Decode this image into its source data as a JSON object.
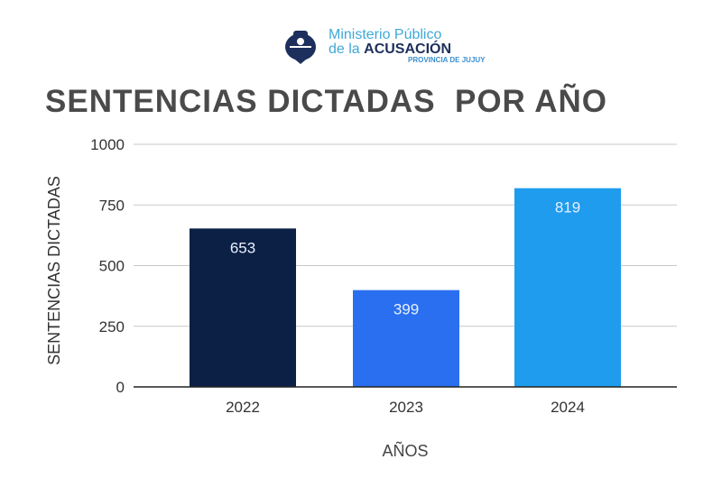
{
  "logo": {
    "line1": "Ministerio Público",
    "line2a": "de la ",
    "line2b": "ACUSACIÓN",
    "line3": "PROVINCIA DE JUJUY"
  },
  "chart_data": {
    "type": "bar",
    "title": "SENTENCIAS DICTADAS  POR AÑO",
    "xlabel": "AÑOS",
    "ylabel": "SENTENCIAS DICTADAS",
    "categories": [
      "2022",
      "2023",
      "2024"
    ],
    "values": [
      653,
      399,
      819
    ],
    "colors": [
      "#0c1f45",
      "#2a6ff0",
      "#1f9cee"
    ],
    "ylim": [
      0,
      1000
    ],
    "yticks": [
      0,
      250,
      500,
      750,
      1000
    ],
    "grid": true,
    "data_labels": [
      "653",
      "399",
      "819"
    ]
  }
}
